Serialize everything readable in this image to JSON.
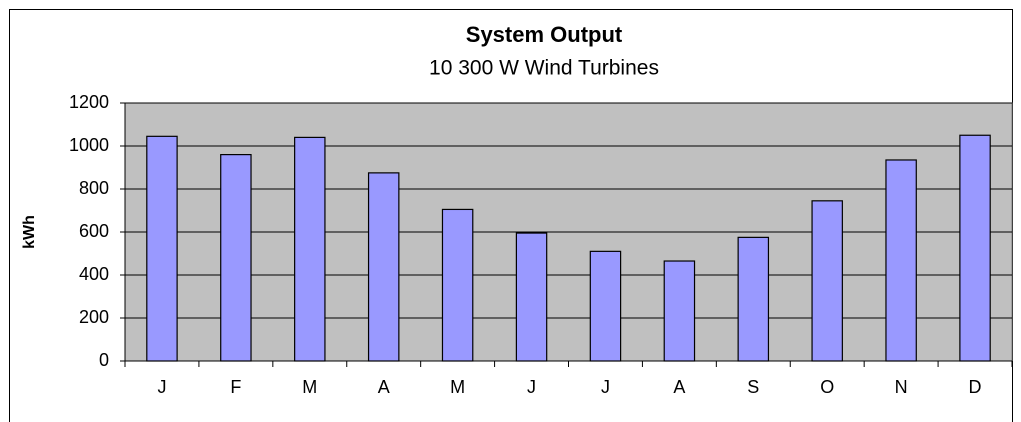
{
  "chart_data": {
    "type": "bar",
    "title": "System Output",
    "subtitle": "10 300 W Wind Turbines",
    "y_label": "kWh",
    "categories": [
      "J",
      "F",
      "M",
      "A",
      "M",
      "J",
      "J",
      "A",
      "S",
      "O",
      "N",
      "D"
    ],
    "values": [
      1045,
      960,
      1040,
      875,
      705,
      595,
      510,
      465,
      575,
      745,
      935,
      1050
    ],
    "color": "#9999ff",
    "ylim": [
      0,
      1200
    ],
    "yticks": [
      0,
      200,
      400,
      600,
      800,
      1000,
      1200
    ],
    "grid": true
  }
}
